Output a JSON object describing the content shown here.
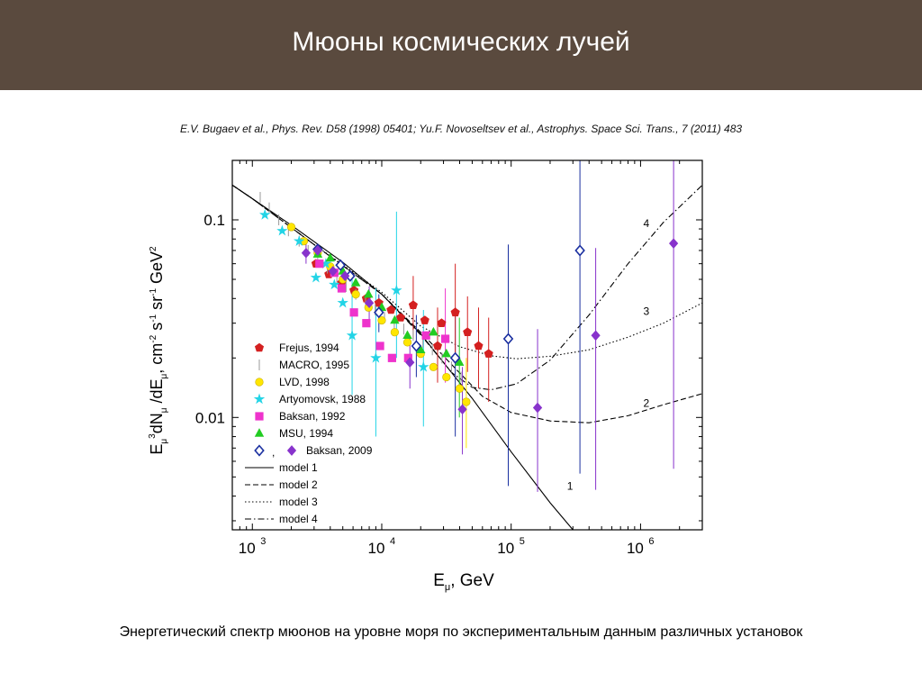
{
  "page": {
    "title": "Мюоны космических лучей",
    "citation": "E.V. Bugaev et al., Phys. Rev. D58 (1998) 05401; Yu.F. Novoseltsev et al., Astrophys. Space Sci. Trans., 7 (2011) 483",
    "caption": "Энергетический спектр мюонов на уровне моря по экспериментальным данным различных установок"
  },
  "chart_data": {
    "type": "scatter",
    "xlabel": "E_μ, GeV",
    "ylabel": "E_μ^3 dN_μ/dE_μ, cm^-2 s^-1 sr^-1 GeV^2",
    "x_scale": "log",
    "y_scale": "log",
    "xlim": [
      700,
      3000000
    ],
    "ylim": [
      0.0027,
      0.2
    ],
    "x_ticks": [
      {
        "value": 1000,
        "base": "10",
        "exp": "3"
      },
      {
        "value": 10000,
        "base": "10",
        "exp": "4"
      },
      {
        "value": 100000,
        "base": "10",
        "exp": "5"
      },
      {
        "value": 1000000,
        "base": "10",
        "exp": "6"
      }
    ],
    "y_ticks": [
      {
        "value": 0.01,
        "label": "0.01"
      },
      {
        "value": 0.1,
        "label": "0.1"
      }
    ],
    "legend_position": "lower-left",
    "series": [
      {
        "name": "Frejus, 1994",
        "marker": "pentagon",
        "color": "#d42020",
        "filled": true,
        "points": [
          [
            3100,
            0.06
          ],
          [
            3900,
            0.053
          ],
          [
            4900,
            0.048
          ],
          [
            6100,
            0.044
          ],
          [
            7600,
            0.04
          ],
          [
            9500,
            0.038
          ],
          [
            11800,
            0.035
          ],
          [
            14000,
            0.032
          ],
          [
            17500,
            0.037
          ],
          [
            21500,
            0.031
          ],
          [
            27000,
            0.023
          ],
          [
            29000,
            0.03
          ],
          [
            37000,
            0.034
          ],
          [
            46000,
            0.027
          ],
          [
            56000,
            0.023
          ],
          [
            67000,
            0.021
          ]
        ]
      },
      {
        "name": "MACRO, 1995",
        "marker": "tick",
        "color": "#999999",
        "filled": false,
        "points": [
          [
            1150,
            0.13
          ],
          [
            1350,
            0.115
          ],
          [
            1600,
            0.1
          ],
          [
            1900,
            0.088
          ],
          [
            2300,
            0.078
          ],
          [
            2700,
            0.07
          ],
          [
            3200,
            0.063
          ],
          [
            3800,
            0.057
          ],
          [
            4500,
            0.051
          ],
          [
            5300,
            0.046
          ],
          [
            6300,
            0.042
          ],
          [
            7500,
            0.038
          ],
          [
            8900,
            0.035
          ],
          [
            10500,
            0.032
          ],
          [
            12500,
            0.03
          ],
          [
            14800,
            0.028
          ],
          [
            17500,
            0.026
          ],
          [
            20800,
            0.024
          ],
          [
            24600,
            0.022
          ],
          [
            29200,
            0.02
          ],
          [
            34600,
            0.018
          ],
          [
            41000,
            0.016
          ]
        ]
      },
      {
        "name": "LVD, 1998",
        "marker": "circle",
        "color": "#ffe600",
        "filled": true,
        "points": [
          [
            2000,
            0.092
          ],
          [
            2500,
            0.078
          ],
          [
            3200,
            0.068
          ],
          [
            4000,
            0.058
          ],
          [
            5000,
            0.05
          ],
          [
            6300,
            0.042
          ],
          [
            7900,
            0.036
          ],
          [
            10000,
            0.031
          ],
          [
            12600,
            0.027
          ],
          [
            15800,
            0.024
          ],
          [
            20000,
            0.021
          ],
          [
            25100,
            0.018
          ],
          [
            31600,
            0.016
          ],
          [
            40000,
            0.014
          ],
          [
            45000,
            0.012
          ]
        ]
      },
      {
        "name": "Artyomovsk, 1988",
        "marker": "star",
        "color": "#22d4e6",
        "filled": true,
        "points": [
          [
            1250,
            0.106
          ],
          [
            1700,
            0.088
          ],
          [
            2300,
            0.078
          ],
          [
            3100,
            0.051
          ],
          [
            3700,
            0.06
          ],
          [
            4300,
            0.047
          ],
          [
            5000,
            0.038
          ],
          [
            5900,
            0.026
          ],
          [
            9000,
            0.02
          ],
          [
            13000,
            0.044
          ],
          [
            21000,
            0.018
          ]
        ]
      },
      {
        "name": "Baksan, 1992",
        "marker": "square",
        "color": "#ee33cc",
        "filled": true,
        "points": [
          [
            3300,
            0.06
          ],
          [
            4300,
            0.054
          ],
          [
            4900,
            0.045
          ],
          [
            6100,
            0.034
          ],
          [
            7600,
            0.03
          ],
          [
            9700,
            0.023
          ],
          [
            12000,
            0.02
          ],
          [
            16000,
            0.02
          ],
          [
            22000,
            0.026
          ],
          [
            31000,
            0.025
          ]
        ]
      },
      {
        "name": "MSU, 1994",
        "marker": "triangle",
        "color": "#22cc22",
        "filled": true,
        "points": [
          [
            3200,
            0.067
          ],
          [
            4000,
            0.064
          ],
          [
            5000,
            0.055
          ],
          [
            6300,
            0.048
          ],
          [
            7900,
            0.042
          ],
          [
            10000,
            0.036
          ],
          [
            12600,
            0.031
          ],
          [
            15800,
            0.026
          ],
          [
            20000,
            0.022
          ],
          [
            25100,
            0.027
          ],
          [
            31600,
            0.021
          ],
          [
            39800,
            0.019
          ]
        ]
      },
      {
        "name": "Baksan, 2009",
        "marker": "diamond",
        "color": "#1a2fa0",
        "filled": false,
        "points": [
          [
            3200,
            0.071
          ],
          [
            4800,
            0.059
          ],
          [
            5700,
            0.052
          ],
          [
            9500,
            0.034
          ],
          [
            18500,
            0.023
          ],
          [
            37000,
            0.02
          ],
          [
            95000,
            0.025
          ],
          [
            340000,
            0.07
          ]
        ]
      },
      {
        "name": "Baksan, 2009",
        "marker": "diamond",
        "color": "#8833cc",
        "filled": true,
        "points": [
          [
            2600,
            0.068
          ],
          [
            3200,
            0.07
          ],
          [
            4200,
            0.055
          ],
          [
            5200,
            0.052
          ],
          [
            8000,
            0.038
          ],
          [
            16500,
            0.019
          ],
          [
            42000,
            0.011
          ],
          [
            160000,
            0.0112
          ],
          [
            450000,
            0.026
          ],
          [
            1800000,
            0.076
          ]
        ]
      }
    ],
    "error_bars": [
      {
        "x": 2600,
        "lo": 0.06,
        "hi": 0.078,
        "color": "#8833cc"
      },
      {
        "x": 8000,
        "lo": 0.03,
        "hi": 0.046,
        "color": "#8833cc"
      },
      {
        "x": 16500,
        "lo": 0.014,
        "hi": 0.025,
        "color": "#8833cc"
      },
      {
        "x": 42000,
        "lo": 0.0065,
        "hi": 0.018,
        "color": "#8833cc"
      },
      {
        "x": 160000,
        "lo": 0.0042,
        "hi": 0.028,
        "color": "#8833cc"
      },
      {
        "x": 450000,
        "lo": 0.0043,
        "hi": 0.072,
        "color": "#8833cc"
      },
      {
        "x": 1800000,
        "lo": 0.0055,
        "hi": 0.2,
        "color": "#8833cc"
      },
      {
        "x": 9500,
        "lo": 0.027,
        "hi": 0.042,
        "color": "#1a2fa0"
      },
      {
        "x": 18500,
        "lo": 0.016,
        "hi": 0.033,
        "color": "#1a2fa0"
      },
      {
        "x": 37000,
        "lo": 0.008,
        "hi": 0.036,
        "color": "#1a2fa0"
      },
      {
        "x": 95000,
        "lo": 0.0045,
        "hi": 0.075,
        "color": "#1a2fa0"
      },
      {
        "x": 340000,
        "lo": 0.0052,
        "hi": 0.2,
        "color": "#1a2fa0"
      },
      {
        "x": 5900,
        "lo": 0.013,
        "hi": 0.05,
        "color": "#22d4e6"
      },
      {
        "x": 9000,
        "lo": 0.008,
        "hi": 0.045,
        "color": "#22d4e6"
      },
      {
        "x": 13000,
        "lo": 0.02,
        "hi": 0.11,
        "color": "#22d4e6"
      },
      {
        "x": 21000,
        "lo": 0.009,
        "hi": 0.035,
        "color": "#22d4e6"
      },
      {
        "x": 17500,
        "lo": 0.025,
        "hi": 0.052,
        "color": "#d42020"
      },
      {
        "x": 27000,
        "lo": 0.015,
        "hi": 0.036,
        "color": "#d42020"
      },
      {
        "x": 37000,
        "lo": 0.02,
        "hi": 0.06,
        "color": "#d42020"
      },
      {
        "x": 46000,
        "lo": 0.017,
        "hi": 0.041,
        "color": "#d42020"
      },
      {
        "x": 56000,
        "lo": 0.014,
        "hi": 0.036,
        "color": "#d42020"
      },
      {
        "x": 67000,
        "lo": 0.012,
        "hi": 0.032,
        "color": "#d42020"
      },
      {
        "x": 31000,
        "lo": 0.015,
        "hi": 0.045,
        "color": "#ee33cc"
      },
      {
        "x": 39800,
        "lo": 0.01,
        "hi": 0.032,
        "color": "#22cc22"
      },
      {
        "x": 45000,
        "lo": 0.007,
        "hi": 0.02,
        "color": "#ffe600"
      }
    ],
    "models": [
      {
        "name": "model 1",
        "dash": "solid",
        "label": "1",
        "label_at": [
          270000,
          0.0043
        ],
        "points": [
          [
            700,
            0.15
          ],
          [
            1000,
            0.128
          ],
          [
            2000,
            0.094
          ],
          [
            5000,
            0.061
          ],
          [
            10000,
            0.042
          ],
          [
            20000,
            0.0265
          ],
          [
            50000,
            0.0125
          ],
          [
            100000,
            0.0067
          ],
          [
            200000,
            0.0037
          ],
          [
            300000,
            0.0027
          ]
        ]
      },
      {
        "name": "model 2",
        "dash": "dashed",
        "label": "2",
        "label_at": [
          1050000,
          0.0113
        ],
        "points": [
          [
            700,
            0.15
          ],
          [
            1000,
            0.128
          ],
          [
            3000,
            0.075
          ],
          [
            10000,
            0.042
          ],
          [
            20000,
            0.027
          ],
          [
            40000,
            0.0168
          ],
          [
            60000,
            0.0128
          ],
          [
            100000,
            0.0106
          ],
          [
            200000,
            0.0096
          ],
          [
            400000,
            0.0094
          ],
          [
            800000,
            0.0102
          ],
          [
            1500000,
            0.0116
          ],
          [
            3000000,
            0.0132
          ]
        ]
      },
      {
        "name": "model 3",
        "dash": "dotted",
        "label": "3",
        "label_at": [
          1050000,
          0.033
        ],
        "points": [
          [
            700,
            0.15
          ],
          [
            1000,
            0.128
          ],
          [
            3000,
            0.075
          ],
          [
            10000,
            0.043
          ],
          [
            20000,
            0.029
          ],
          [
            40000,
            0.0228
          ],
          [
            70000,
            0.0205
          ],
          [
            110000,
            0.0198
          ],
          [
            200000,
            0.0204
          ],
          [
            400000,
            0.022
          ],
          [
            800000,
            0.0255
          ],
          [
            1500000,
            0.03
          ],
          [
            3000000,
            0.038
          ]
        ]
      },
      {
        "name": "model 4",
        "dash": "dashdot",
        "label": "4",
        "label_at": [
          1050000,
          0.092
        ],
        "points": [
          [
            700,
            0.15
          ],
          [
            1000,
            0.128
          ],
          [
            3000,
            0.075
          ],
          [
            10000,
            0.042
          ],
          [
            20000,
            0.0262
          ],
          [
            35000,
            0.0168
          ],
          [
            50000,
            0.0142
          ],
          [
            70000,
            0.0138
          ],
          [
            110000,
            0.0148
          ],
          [
            200000,
            0.0195
          ],
          [
            400000,
            0.033
          ],
          [
            800000,
            0.06
          ],
          [
            1500000,
            0.097
          ],
          [
            3000000,
            0.15
          ]
        ]
      }
    ]
  }
}
